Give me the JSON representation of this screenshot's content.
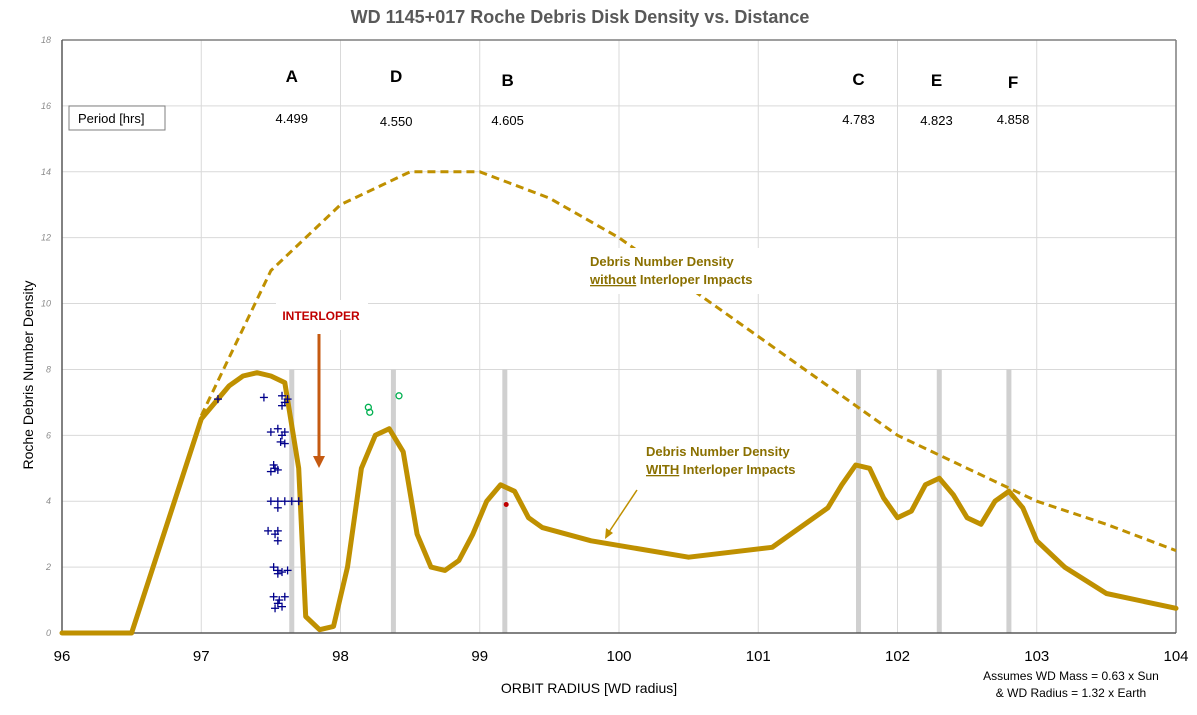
{
  "chart_data": {
    "type": "line",
    "title": "WD 1145+017 Roche Debris Disk Density vs. Distance",
    "xlabel": "ORBIT RADIUS [WD radius]",
    "ylabel": "Roche Debris Number Density",
    "xlim": [
      96,
      104
    ],
    "ylim": [
      0,
      18
    ],
    "x_ticks": [
      "96",
      "97",
      "98",
      "99",
      "100",
      "101",
      "102",
      "103",
      "104"
    ],
    "y_ticks": [
      "0",
      "2",
      "4",
      "6",
      "8",
      "10",
      "12",
      "14",
      "16",
      "18"
    ],
    "grid": true,
    "series": [
      {
        "name": "Debris Number Density without Interloper Impacts",
        "style": "dashed",
        "color": "#bf9000",
        "points": [
          [
            97.0,
            6.6
          ],
          [
            97.5,
            11.0
          ],
          [
            98.0,
            13.0
          ],
          [
            98.5,
            14.0
          ],
          [
            99.0,
            14.0
          ],
          [
            99.5,
            13.2
          ],
          [
            100.0,
            12.0
          ],
          [
            100.5,
            10.5
          ],
          [
            101.0,
            9.0
          ],
          [
            101.5,
            7.5
          ],
          [
            102.0,
            6.0
          ],
          [
            102.5,
            5.0
          ],
          [
            103.0,
            4.0
          ],
          [
            103.5,
            3.3
          ],
          [
            104.0,
            2.5
          ]
        ]
      },
      {
        "name": "Debris Number Density WITH Interloper Impacts",
        "style": "solid",
        "color": "#bf9000",
        "points": [
          [
            96.0,
            0.0
          ],
          [
            96.5,
            0.0
          ],
          [
            97.0,
            6.5
          ],
          [
            97.2,
            7.5
          ],
          [
            97.3,
            7.8
          ],
          [
            97.4,
            7.9
          ],
          [
            97.5,
            7.8
          ],
          [
            97.6,
            7.6
          ],
          [
            97.7,
            5.0
          ],
          [
            97.75,
            0.5
          ],
          [
            97.85,
            0.1
          ],
          [
            97.95,
            0.2
          ],
          [
            98.05,
            2.0
          ],
          [
            98.15,
            5.0
          ],
          [
            98.25,
            6.0
          ],
          [
            98.35,
            6.2
          ],
          [
            98.45,
            5.5
          ],
          [
            98.55,
            3.0
          ],
          [
            98.65,
            2.0
          ],
          [
            98.75,
            1.9
          ],
          [
            98.85,
            2.2
          ],
          [
            98.95,
            3.0
          ],
          [
            99.05,
            4.0
          ],
          [
            99.15,
            4.5
          ],
          [
            99.25,
            4.3
          ],
          [
            99.35,
            3.5
          ],
          [
            99.45,
            3.2
          ],
          [
            99.8,
            2.8
          ],
          [
            100.5,
            2.3
          ],
          [
            101.1,
            2.6
          ],
          [
            101.5,
            3.8
          ],
          [
            101.6,
            4.5
          ],
          [
            101.7,
            5.1
          ],
          [
            101.8,
            5.0
          ],
          [
            101.9,
            4.1
          ],
          [
            102.0,
            3.5
          ],
          [
            102.1,
            3.7
          ],
          [
            102.2,
            4.5
          ],
          [
            102.3,
            4.7
          ],
          [
            102.4,
            4.2
          ],
          [
            102.5,
            3.5
          ],
          [
            102.6,
            3.3
          ],
          [
            102.7,
            4.0
          ],
          [
            102.8,
            4.3
          ],
          [
            102.9,
            3.8
          ],
          [
            103.0,
            2.8
          ],
          [
            103.2,
            2.0
          ],
          [
            103.5,
            1.2
          ],
          [
            104.0,
            0.75
          ]
        ]
      }
    ],
    "markers": {
      "plus_color": "#00008b",
      "plus": [
        [
          97.12,
          7.1
        ],
        [
          97.45,
          7.15
        ],
        [
          97.58,
          7.2
        ],
        [
          97.6,
          7.0
        ],
        [
          97.58,
          6.9
        ],
        [
          97.62,
          7.1
        ],
        [
          97.5,
          6.1
        ],
        [
          97.55,
          6.2
        ],
        [
          97.58,
          6.0
        ],
        [
          97.6,
          6.1
        ],
        [
          97.57,
          5.8
        ],
        [
          97.6,
          5.75
        ],
        [
          97.52,
          5.1
        ],
        [
          97.55,
          4.95
        ],
        [
          97.5,
          4.9
        ],
        [
          97.53,
          5.0
        ],
        [
          97.5,
          4.0
        ],
        [
          97.55,
          4.0
        ],
        [
          97.6,
          4.0
        ],
        [
          97.65,
          4.0
        ],
        [
          97.7,
          4.0
        ],
        [
          97.55,
          3.8
        ],
        [
          97.48,
          3.1
        ],
        [
          97.55,
          3.1
        ],
        [
          97.53,
          3.0
        ],
        [
          97.55,
          2.8
        ],
        [
          97.52,
          2.0
        ],
        [
          97.55,
          1.9
        ],
        [
          97.58,
          1.85
        ],
        [
          97.62,
          1.9
        ],
        [
          97.55,
          1.8
        ],
        [
          97.52,
          1.1
        ],
        [
          97.56,
          1.0
        ],
        [
          97.6,
          1.1
        ],
        [
          97.55,
          0.9
        ],
        [
          97.58,
          0.8
        ],
        [
          97.53,
          0.75
        ]
      ],
      "circle_color": "#00b050",
      "circles": [
        [
          98.2,
          6.85
        ],
        [
          98.21,
          6.7
        ],
        [
          98.42,
          7.2
        ]
      ],
      "red_color": "#c00000",
      "red": [
        [
          99.19,
          3.9
        ]
      ]
    },
    "peak_lines": [
      97.65,
      98.38,
      99.18,
      101.72,
      102.3,
      102.8
    ],
    "peaks": [
      {
        "label": "A",
        "x": 97.65,
        "period": "4.499"
      },
      {
        "label": "D",
        "x": 98.4,
        "period": "4.550"
      },
      {
        "label": "B",
        "x": 99.2,
        "period": "4.605"
      },
      {
        "label": "C",
        "x": 101.72,
        "period": "4.783"
      },
      {
        "label": "E",
        "x": 102.28,
        "period": "4.823"
      },
      {
        "label": "F",
        "x": 102.83,
        "period": "4.858"
      }
    ],
    "period_label": "Period [hrs]",
    "annotations": {
      "without_line1": "Debris Number Density",
      "without_line2_underlined": "without",
      "without_line2_rest": " Interloper Impacts",
      "with_line1": "Debris Number Density",
      "with_line2_underlined": "WITH",
      "with_line2_rest": " Interloper Impacts",
      "interloper": "INTERLOPER",
      "note_line1": "Assumes WD Mass = 0.63 x Sun",
      "note_line2": "& WD Radius  = 1.32 x Earth"
    }
  }
}
